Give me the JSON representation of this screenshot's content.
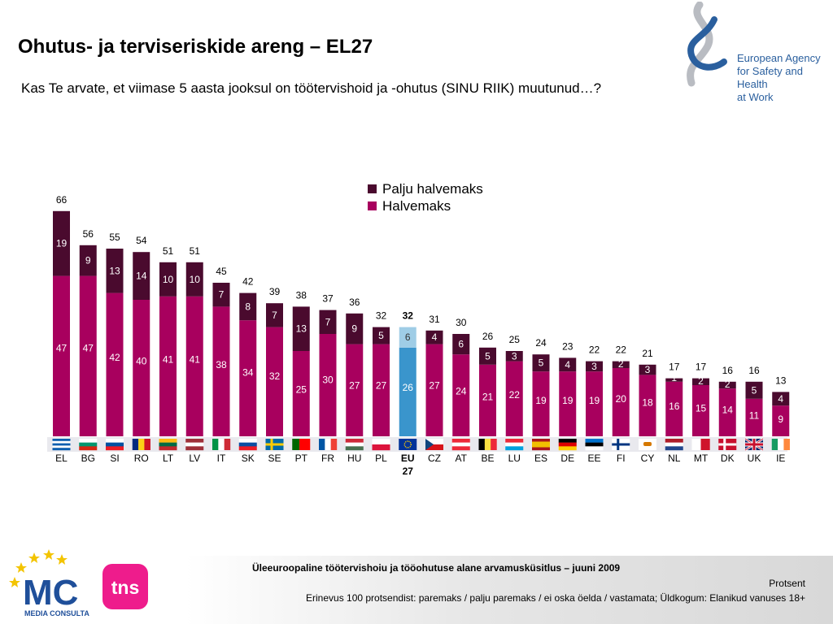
{
  "header": {
    "title": "Ohutus- ja terviseriskide areng – EL27",
    "question": "Kas Te arvate, et viimase 5 aasta jooksul on töötervishoid ja -ohutus (SINU RIIK) muutunud…?"
  },
  "agency_logo": {
    "lines": [
      "European Agency",
      "for Safety and Health",
      "at Work"
    ]
  },
  "mc_logo": {
    "text": "MC",
    "subtext": "MEDIA CONSULTA"
  },
  "tns_logo": {
    "text": "tns"
  },
  "footer": {
    "title": "Üleeuroopaline töötervishoiu ja tööohutuse alane arvamusküsitlus – juuni 2009",
    "unit": "Protsent",
    "note": "Erinevus 100 protsendist: paremaks / palju paremaks / ei oska öelda / vastamata; Üldkogum: Elanikud vanuses 18+"
  },
  "colors": {
    "halvemaks": "#a8005e",
    "palju_halvemaks": "#4a0a2e",
    "eu_halvemaks": "#3a95cc",
    "eu_palju_halvemaks": "#9fcde6"
  },
  "chart_data": {
    "type": "bar",
    "stacked": true,
    "categories": [
      "EL",
      "BG",
      "SI",
      "RO",
      "LT",
      "LV",
      "IT",
      "SK",
      "SE",
      "PT",
      "FR",
      "HU",
      "PL",
      "EU\n27",
      "CZ",
      "AT",
      "BE",
      "LU",
      "ES",
      "DE",
      "EE",
      "FI",
      "CY",
      "NL",
      "MT",
      "DK",
      "UK",
      "IE"
    ],
    "series": [
      {
        "name": "Halvemaks",
        "values": [
          47,
          47,
          42,
          40,
          41,
          41,
          38,
          34,
          32,
          25,
          30,
          27,
          27,
          26,
          27,
          24,
          21,
          22,
          19,
          19,
          19,
          20,
          18,
          16,
          15,
          14,
          11,
          9
        ]
      },
      {
        "name": "Palju halvemaks",
        "values": [
          19,
          9,
          13,
          14,
          10,
          10,
          7,
          8,
          7,
          13,
          7,
          9,
          5,
          6,
          4,
          6,
          5,
          3,
          5,
          4,
          3,
          2,
          3,
          1,
          2,
          2,
          5,
          4
        ]
      }
    ],
    "totals": [
      66,
      56,
      55,
      54,
      51,
      51,
      45,
      42,
      39,
      38,
      37,
      36,
      32,
      32,
      31,
      30,
      26,
      25,
      24,
      23,
      22,
      22,
      21,
      17,
      17,
      16,
      16,
      13
    ],
    "highlight_category": "EU\n27",
    "ylim": [
      0,
      70
    ],
    "legend_position": "top-center",
    "grid": false
  }
}
